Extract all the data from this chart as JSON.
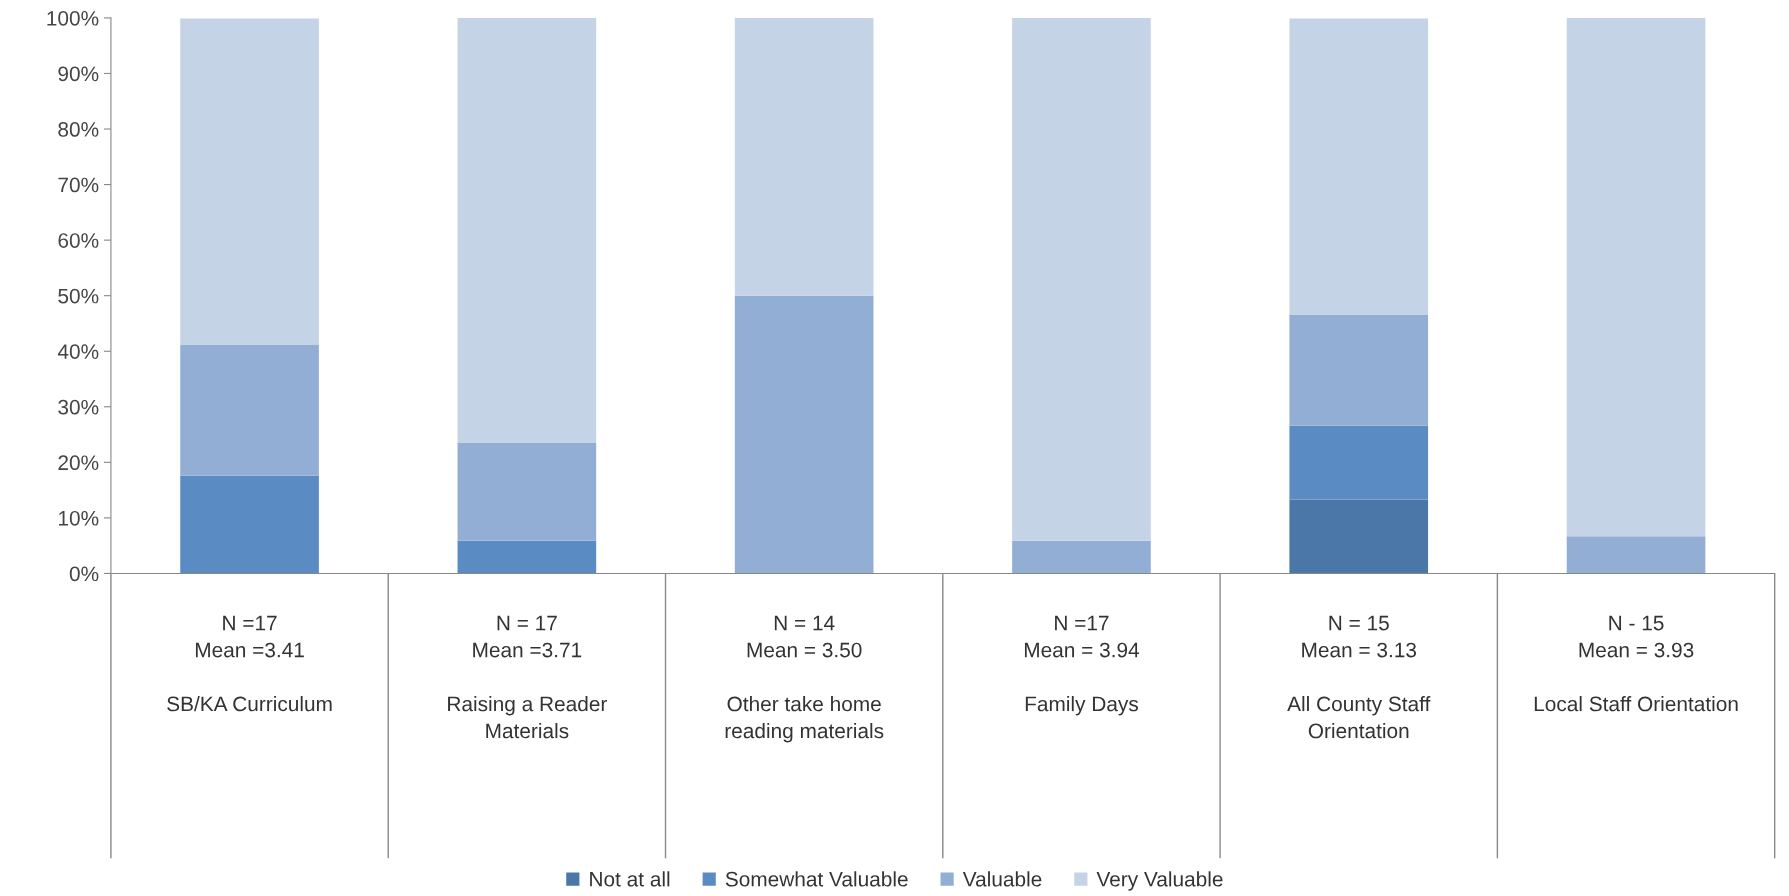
{
  "chart_data": {
    "type": "bar",
    "stacked": true,
    "categories": [
      "N =17\nMean =3.41\n\nSB/KA Curriculum",
      "N = 17\nMean =3.71\n\nRaising a Reader\nMaterials",
      "N = 14\nMean = 3.50\n\nOther take home\nreading materials",
      "N =17\nMean = 3.94\n\nFamily Days",
      "N = 15\nMean = 3.13\n\nAll County Staff\nOrientation",
      "N - 15\nMean = 3.93\n\nLocal Staff Orientation"
    ],
    "series": [
      {
        "name": "Not at all",
        "color": "#4a76a8",
        "values": [
          0,
          0,
          0,
          0,
          13.3,
          0
        ]
      },
      {
        "name": "Somewhat Valuable",
        "color": "#5a8bc2",
        "values": [
          17.6,
          5.9,
          0,
          0,
          13.3,
          0
        ]
      },
      {
        "name": "Valuable",
        "color": "#93aed5",
        "values": [
          23.5,
          17.6,
          50,
          5.9,
          20,
          6.7
        ]
      },
      {
        "name": "Very Valuable",
        "color": "#c5d3e6",
        "values": [
          58.8,
          76.5,
          50,
          94.1,
          53.3,
          93.3
        ]
      }
    ],
    "ylim": [
      0,
      100
    ],
    "yticks": [
      {
        "value": 0,
        "label": "0%"
      },
      {
        "value": 10,
        "label": "10%"
      },
      {
        "value": 20,
        "label": "20%"
      },
      {
        "value": 30,
        "label": "30%"
      },
      {
        "value": 40,
        "label": "40%"
      },
      {
        "value": 50,
        "label": "50%"
      },
      {
        "value": 60,
        "label": "60%"
      },
      {
        "value": 70,
        "label": "70%"
      },
      {
        "value": 80,
        "label": "80%"
      },
      {
        "value": 90,
        "label": "90%"
      },
      {
        "value": 100,
        "label": "100%"
      }
    ],
    "grid": false,
    "legend": "bottom"
  }
}
